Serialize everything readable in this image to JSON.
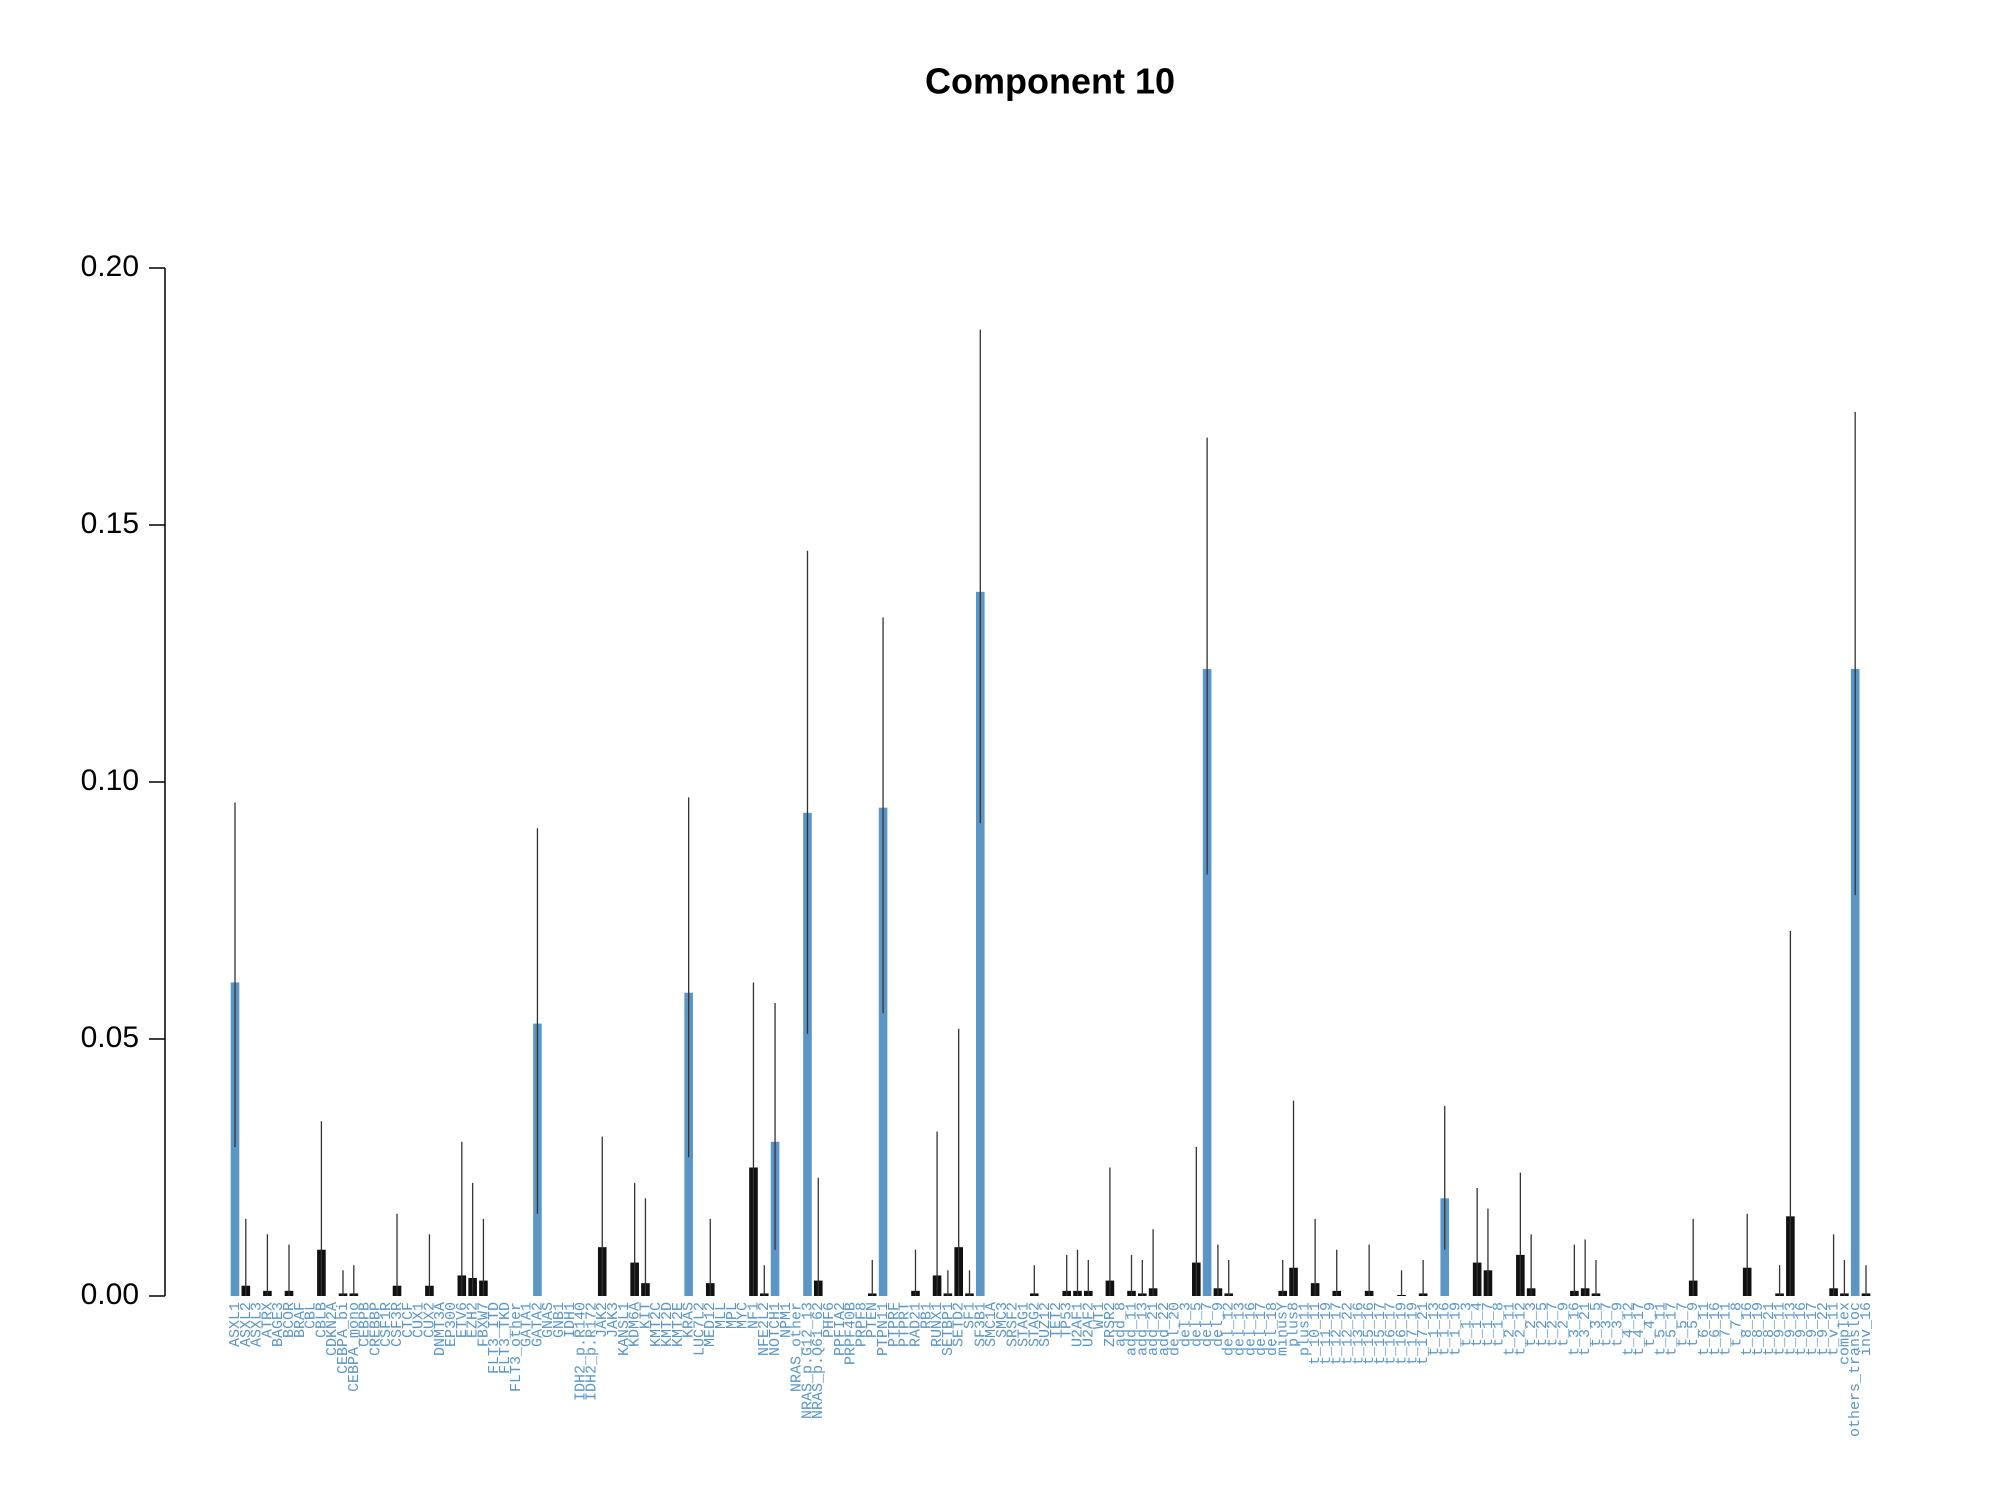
{
  "chart_data": {
    "type": "bar",
    "title": "Component 10",
    "categories": [
      "ASXL1",
      "ASXL2",
      "ASXL3",
      "ATRX",
      "BAGE3",
      "BCOR",
      "BRAF",
      "CBL",
      "CBLB",
      "CDKN2A",
      "CEBPA_bi",
      "CEBPA_mono",
      "CEBPB",
      "CREBBP",
      "CSF1R",
      "CSF3R",
      "CTCF",
      "CUX1",
      "CUX2",
      "DNMT3A",
      "EP300",
      "ETV6",
      "EZH2",
      "FBXW7",
      "FLT3_ITD",
      "FLT3_TKD",
      "FLT3_other",
      "GATA1",
      "GATA2",
      "GNAS",
      "GNB1",
      "IDH1",
      "IDH2_p.R140",
      "IDH2_p.R172",
      "JAK2",
      "JAK3",
      "KANSL1",
      "KDM6A",
      "KIT",
      "KMT2C",
      "KMT2D",
      "KMT2E",
      "KRAS",
      "LUC7L2",
      "MED12",
      "MLL",
      "MPL",
      "MYC",
      "NF1",
      "NFE2L2",
      "NOTCH1",
      "NPM1",
      "NRAS_other",
      "NRAS_p.G12_13",
      "NRAS_p.Q61_62",
      "PHF6",
      "PPFIA2",
      "PRPF40B",
      "PRPF8",
      "PTEN",
      "PTPN11",
      "PTPRF",
      "PTPRT",
      "RAD21",
      "RB1",
      "RUNX1",
      "SETBP1",
      "SETD2",
      "SF1",
      "SF3B1",
      "SMC1A",
      "SMC3",
      "SRSF2",
      "STAG1",
      "STAG2",
      "SUZ12",
      "TET2",
      "TP53",
      "U2AF1",
      "U2AF2",
      "WT1",
      "ZRSR2",
      "add_8",
      "add_11",
      "add_13",
      "add_21",
      "add_22",
      "del_20",
      "del_3",
      "del_5",
      "del_7",
      "del_9",
      "del_12",
      "del_13",
      "del_16",
      "del_17",
      "del_18",
      "minusY",
      "plus8",
      "plus11",
      "t_10_11",
      "t_11_19",
      "t_12_17",
      "t_12_22",
      "t_13_16",
      "t_15_16",
      "t_15_17",
      "t_16_17",
      "t_16_19",
      "t_17_19",
      "t_17_21",
      "t_1_13",
      "t_1_16",
      "t_1_19",
      "t_1_3",
      "t_1_4",
      "t_1_7",
      "t_1_8",
      "t_2_11",
      "t_2_12",
      "t_2_3",
      "t_2_5",
      "t_2_7",
      "t_2_9",
      "t_3_16",
      "t_3_21",
      "t_3_5",
      "t_3_7",
      "t_3_9",
      "t_4_12",
      "t_4_17",
      "t_4_9",
      "t_5_11",
      "t_5_17",
      "t_5_7",
      "t_5_9",
      "t_6_11",
      "t_6_16",
      "t_7_11",
      "t_7_8",
      "t_8_16",
      "t_8_19",
      "t_8_21",
      "t_9_11",
      "t_9_13",
      "t_9_16",
      "t_9_17",
      "t_9_22",
      "t_v_11",
      "complex",
      "others_transloc",
      "inv_16"
    ],
    "values": [
      0.061,
      0.002,
      0,
      0.001,
      0,
      0.001,
      0,
      0,
      0.009,
      0,
      0.0005,
      0.0005,
      0,
      0,
      0,
      0.002,
      0,
      0,
      0.002,
      0,
      0,
      0.004,
      0.0035,
      0.003,
      0,
      0,
      0,
      0,
      0.053,
      0,
      0,
      0,
      0,
      0,
      0.0095,
      0,
      0,
      0.0065,
      0.0025,
      0,
      0,
      0,
      0.059,
      0,
      0.0025,
      0,
      0,
      0,
      0.025,
      0.0005,
      0.03,
      0,
      0,
      0.094,
      0.003,
      0,
      0,
      0,
      0,
      0.0005,
      0.095,
      0,
      0,
      0.001,
      0,
      0.004,
      0.0005,
      0.0095,
      0.0005,
      0.137,
      0,
      0,
      0,
      0,
      0.0005,
      0,
      0,
      0.001,
      0.001,
      0.001,
      0,
      0.003,
      0,
      0.001,
      0.0005,
      0.0015,
      0,
      0,
      0,
      0.0065,
      0.122,
      0.0015,
      0.0005,
      0,
      0,
      0,
      0,
      0.001,
      0.0055,
      0,
      0.0025,
      0,
      0.001,
      0,
      0,
      0.001,
      0,
      0,
      0.0002,
      0,
      0.0005,
      0,
      0.019,
      0,
      0,
      0.0065,
      0.005,
      0,
      0,
      0.008,
      0.0015,
      0,
      0,
      0,
      0.001,
      0.0015,
      0.0005,
      0,
      0,
      0,
      0,
      0,
      0,
      0,
      0,
      0.003,
      0,
      0,
      0,
      0,
      0.0055,
      0,
      0,
      0.0005,
      0.0155,
      0,
      0,
      0,
      0.0015,
      0.0005,
      0.122,
      0.0005
    ],
    "lower": [
      0.029,
      0,
      0,
      0,
      0,
      0,
      0,
      0,
      0,
      0,
      0,
      0,
      0,
      0,
      0,
      0,
      0,
      0,
      0,
      0,
      0,
      0,
      0,
      0,
      0,
      0,
      0,
      0,
      0.016,
      0,
      0,
      0,
      0,
      0,
      0,
      0,
      0,
      0,
      0,
      0,
      0,
      0,
      0.027,
      0,
      0,
      0,
      0,
      0,
      0,
      0,
      0.009,
      0,
      0,
      0.051,
      0,
      0,
      0,
      0,
      0,
      0,
      0.055,
      0,
      0,
      0,
      0,
      0,
      0,
      0,
      0,
      0.092,
      0,
      0,
      0,
      0,
      0,
      0,
      0,
      0,
      0,
      0,
      0,
      0,
      0,
      0,
      0,
      0,
      0,
      0,
      0,
      0,
      0.082,
      0,
      0,
      0,
      0,
      0,
      0,
      0,
      0,
      0,
      0,
      0,
      0,
      0,
      0,
      0,
      0,
      0,
      0,
      0,
      0,
      0,
      0.009,
      0,
      0,
      0,
      0,
      0,
      0,
      0,
      0,
      0,
      0,
      0,
      0,
      0,
      0,
      0,
      0,
      0,
      0,
      0,
      0,
      0,
      0,
      0,
      0,
      0,
      0,
      0,
      0,
      0,
      0,
      0,
      0,
      0,
      0,
      0,
      0,
      0,
      0.078,
      0
    ],
    "upper": [
      0.096,
      0.015,
      0,
      0.012,
      0,
      0.01,
      0,
      0,
      0.034,
      0,
      0.005,
      0.006,
      0,
      0,
      0,
      0.016,
      0,
      0,
      0.012,
      0,
      0,
      0.03,
      0.022,
      0.015,
      0,
      0,
      0,
      0,
      0.091,
      0,
      0,
      0,
      0,
      0,
      0.031,
      0,
      0,
      0.022,
      0.019,
      0,
      0,
      0,
      0.097,
      0,
      0.015,
      0,
      0,
      0,
      0.061,
      0.006,
      0.057,
      0,
      0,
      0.145,
      0.023,
      0,
      0,
      0,
      0,
      0.007,
      0.132,
      0,
      0,
      0.009,
      0,
      0.032,
      0.005,
      0.052,
      0.005,
      0.188,
      0,
      0,
      0,
      0,
      0.006,
      0,
      0,
      0.008,
      0.009,
      0.007,
      0,
      0.025,
      0,
      0.008,
      0.007,
      0.013,
      0,
      0,
      0,
      0.029,
      0.167,
      0.01,
      0.007,
      0,
      0,
      0,
      0,
      0.007,
      0.038,
      0,
      0.015,
      0,
      0.009,
      0,
      0,
      0.01,
      0,
      0,
      0.005,
      0,
      0.007,
      0,
      0.037,
      0,
      0,
      0.021,
      0.017,
      0,
      0,
      0.024,
      0.012,
      0,
      0,
      0,
      0.01,
      0.011,
      0.007,
      0,
      0,
      0,
      0,
      0,
      0,
      0,
      0,
      0.015,
      0,
      0,
      0,
      0,
      0.016,
      0,
      0,
      0.006,
      0.071,
      0,
      0,
      0,
      0.012,
      0.007,
      0.172,
      0.006
    ],
    "colors": [
      "#5b96c6",
      "#111111",
      "#111111",
      "#111111",
      "#111111",
      "#111111",
      "#111111",
      "#111111",
      "#111111",
      "#111111",
      "#111111",
      "#111111",
      "#111111",
      "#111111",
      "#111111",
      "#111111",
      "#111111",
      "#111111",
      "#111111",
      "#111111",
      "#111111",
      "#111111",
      "#111111",
      "#111111",
      "#111111",
      "#111111",
      "#111111",
      "#111111",
      "#5b96c6",
      "#111111",
      "#111111",
      "#111111",
      "#111111",
      "#111111",
      "#111111",
      "#111111",
      "#111111",
      "#111111",
      "#111111",
      "#111111",
      "#111111",
      "#111111",
      "#5b96c6",
      "#111111",
      "#111111",
      "#111111",
      "#111111",
      "#111111",
      "#111111",
      "#111111",
      "#5b96c6",
      "#111111",
      "#111111",
      "#5b96c6",
      "#111111",
      "#111111",
      "#111111",
      "#111111",
      "#111111",
      "#111111",
      "#5b96c6",
      "#111111",
      "#111111",
      "#111111",
      "#111111",
      "#111111",
      "#111111",
      "#111111",
      "#111111",
      "#5b96c6",
      "#111111",
      "#111111",
      "#111111",
      "#111111",
      "#111111",
      "#111111",
      "#111111",
      "#111111",
      "#111111",
      "#111111",
      "#111111",
      "#111111",
      "#111111",
      "#111111",
      "#111111",
      "#111111",
      "#111111",
      "#111111",
      "#111111",
      "#111111",
      "#5b96c6",
      "#111111",
      "#111111",
      "#111111",
      "#111111",
      "#111111",
      "#111111",
      "#111111",
      "#111111",
      "#111111",
      "#111111",
      "#111111",
      "#111111",
      "#111111",
      "#111111",
      "#111111",
      "#111111",
      "#111111",
      "#111111",
      "#111111",
      "#111111",
      "#111111",
      "#5b96c6",
      "#111111",
      "#111111",
      "#111111",
      "#111111",
      "#111111",
      "#111111",
      "#111111",
      "#111111",
      "#111111",
      "#111111",
      "#111111",
      "#111111",
      "#111111",
      "#111111",
      "#111111",
      "#111111",
      "#111111",
      "#111111",
      "#111111",
      "#111111",
      "#111111",
      "#111111",
      "#111111",
      "#111111",
      "#111111",
      "#111111",
      "#111111",
      "#111111",
      "#111111",
      "#111111",
      "#111111",
      "#111111",
      "#111111",
      "#111111",
      "#111111",
      "#111111",
      "#111111",
      "#5b96c6",
      "#111111"
    ],
    "label_color": "#5b96c6",
    "ylim": [
      0,
      0.2
    ],
    "yticks": [
      {
        "value": 0,
        "label": "0.00"
      },
      0.05,
      {
        "value": 0.1,
        "label": "0.10"
      },
      0.15,
      {
        "value": 0.2,
        "label": "0.20"
      }
    ]
  }
}
